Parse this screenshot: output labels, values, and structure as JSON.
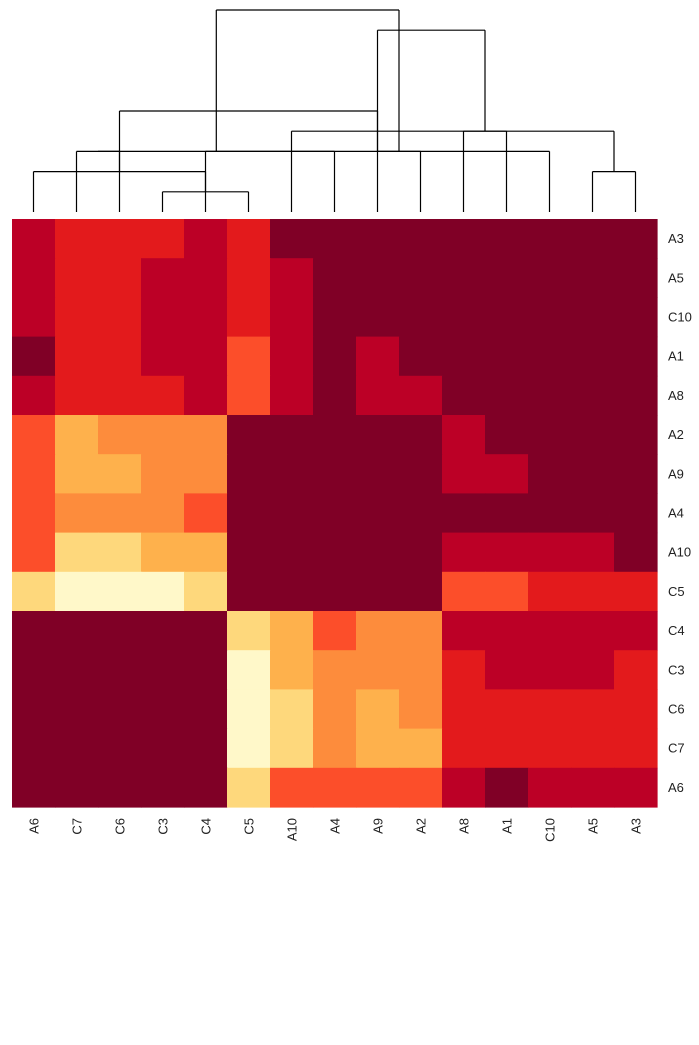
{
  "chart_data": {
    "type": "heatmap",
    "x_labels": [
      "A6",
      "C7",
      "C6",
      "C3",
      "C4",
      "C5",
      "A10",
      "A4",
      "A9",
      "A2",
      "A8",
      "A1",
      "C10",
      "A5",
      "A3"
    ],
    "y_labels": [
      "A3",
      "A5",
      "C10",
      "A1",
      "A8",
      "A2",
      "A9",
      "A4",
      "A10",
      "C5",
      "C4",
      "C3",
      "C6",
      "C7",
      "A6"
    ],
    "value_scale": "0 = lightest (pale yellow) to 7 = darkest (dark red)",
    "values": [
      [
        6,
        5,
        5,
        5,
        6,
        5,
        7,
        7,
        7,
        7,
        7,
        7,
        7,
        7,
        7
      ],
      [
        6,
        5,
        5,
        6,
        6,
        5,
        6,
        7,
        7,
        7,
        7,
        7,
        7,
        7,
        7
      ],
      [
        6,
        5,
        5,
        6,
        6,
        5,
        6,
        7,
        7,
        7,
        7,
        7,
        7,
        7,
        7
      ],
      [
        7,
        5,
        5,
        6,
        6,
        4,
        6,
        7,
        6,
        7,
        7,
        7,
        7,
        7,
        7
      ],
      [
        6,
        5,
        5,
        5,
        6,
        4,
        6,
        7,
        6,
        6,
        7,
        7,
        7,
        7,
        7
      ],
      [
        4,
        2,
        3,
        3,
        3,
        7,
        7,
        7,
        7,
        7,
        6,
        7,
        7,
        7,
        7
      ],
      [
        4,
        2,
        2,
        3,
        3,
        7,
        7,
        7,
        7,
        7,
        6,
        6,
        7,
        7,
        7
      ],
      [
        4,
        3,
        3,
        3,
        4,
        7,
        7,
        7,
        7,
        7,
        7,
        7,
        7,
        7,
        7
      ],
      [
        4,
        1,
        1,
        2,
        2,
        7,
        7,
        7,
        7,
        7,
        6,
        6,
        6,
        6,
        7
      ],
      [
        1,
        0,
        0,
        0,
        1,
        7,
        7,
        7,
        7,
        7,
        4,
        4,
        5,
        5,
        5
      ],
      [
        7,
        7,
        7,
        7,
        7,
        1,
        2,
        4,
        3,
        3,
        6,
        6,
        6,
        6,
        6
      ],
      [
        7,
        7,
        7,
        7,
        7,
        0,
        2,
        3,
        3,
        3,
        5,
        6,
        6,
        6,
        5
      ],
      [
        7,
        7,
        7,
        7,
        7,
        0,
        1,
        3,
        2,
        3,
        5,
        5,
        5,
        5,
        5
      ],
      [
        7,
        7,
        7,
        7,
        7,
        0,
        1,
        3,
        2,
        2,
        5,
        5,
        5,
        5,
        5
      ],
      [
        7,
        7,
        7,
        7,
        7,
        1,
        4,
        4,
        4,
        4,
        6,
        7,
        6,
        6,
        6
      ]
    ],
    "colors": [
      "#fff8c9",
      "#fed87c",
      "#feb14c",
      "#fd8c3c",
      "#fc4e2a",
      "#e31a1c",
      "#bc0026",
      "#800026"
    ],
    "dendrogram_columns": [
      [
        5,
        3,
        1,
        2
      ],
      [
        0,
        4,
        2,
        3
      ],
      [
        1,
        2,
        3,
        2
      ],
      [
        13,
        14,
        2,
        3
      ],
      [
        12,
        15,
        3,
        4
      ],
      [
        10,
        11,
        4,
        5
      ],
      [
        8,
        9,
        3,
        2
      ],
      [
        7,
        17,
        3,
        4
      ],
      [
        6,
        18,
        4,
        8
      ],
      [
        16,
        19,
        5,
        9
      ],
      [
        20,
        19,
        9,
        11
      ],
      [
        21,
        22,
        10,
        14
      ]
    ],
    "grid": false,
    "legend": "none"
  }
}
